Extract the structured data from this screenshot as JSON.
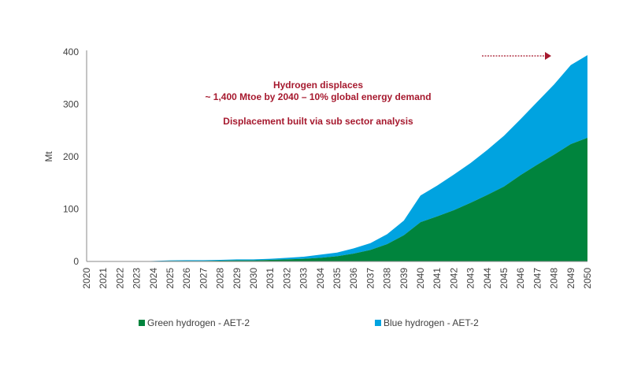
{
  "chart_data": {
    "type": "area",
    "stacked": true,
    "title": "",
    "ylabel": "Mt",
    "xlabel": "",
    "ylim": [
      0,
      400
    ],
    "yticks": [
      0,
      100,
      200,
      300,
      400
    ],
    "grid": false,
    "legend_position": "bottom",
    "x": [
      2020,
      2021,
      2022,
      2023,
      2024,
      2025,
      2026,
      2027,
      2028,
      2029,
      2030,
      2031,
      2032,
      2033,
      2034,
      2035,
      2036,
      2037,
      2038,
      2039,
      2040,
      2041,
      2042,
      2043,
      2044,
      2045,
      2046,
      2047,
      2048,
      2049,
      2050
    ],
    "series": [
      {
        "name": "Green hydrogen - AET-2",
        "color": "#00843D",
        "values": [
          0,
          0,
          0,
          0,
          0.5,
          1,
          1,
          1,
          1.5,
          2,
          2,
          3,
          4,
          5,
          7,
          10,
          15,
          22,
          33,
          50,
          75,
          86,
          98,
          112,
          127,
          143,
          165,
          185,
          204,
          224,
          236
        ]
      },
      {
        "name": "Blue hydrogen - AET-2",
        "color": "#00A3E0",
        "values": [
          0,
          0,
          0,
          0,
          0.5,
          1,
          1.5,
          1.5,
          1.5,
          2,
          2,
          2,
          3,
          4,
          6,
          7,
          10,
          13,
          19,
          28,
          51,
          59,
          68,
          76,
          86,
          97,
          107,
          120,
          134,
          151,
          158
        ]
      }
    ],
    "annotations": [
      "Hydrogen displaces",
      "~ 1,400 Mtoe by 2040 – 10% global energy demand",
      "Displacement built via sub sector analysis"
    ],
    "annotation_color": "#A6192E"
  }
}
